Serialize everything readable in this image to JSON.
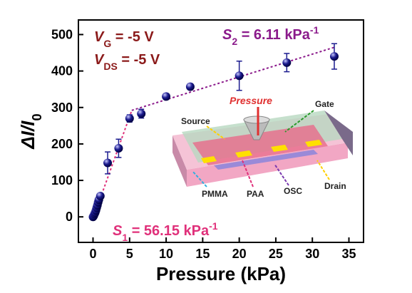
{
  "chart_data": {
    "type": "scatter",
    "x_label": "Pressure (kPa)",
    "y_label": [
      {
        "text": "ΔI/I",
        "style": "italic"
      },
      {
        "text": "0",
        "style": "sub"
      }
    ],
    "xlim": [
      -2,
      37
    ],
    "ylim": [
      -70,
      540
    ],
    "xticks": [
      0,
      5,
      10,
      15,
      20,
      25,
      30,
      35
    ],
    "yticks": [
      0,
      100,
      200,
      300,
      400,
      500
    ],
    "series": [
      {
        "color": "#1c1c8f",
        "x": [
          0,
          0.1,
          0.2,
          0.3,
          0.4,
          0.5,
          0.6,
          0.7,
          0.8,
          1,
          2,
          3.5,
          5,
          6.6,
          10,
          13.3,
          20,
          26.5,
          33
        ],
        "values": [
          0,
          3,
          8,
          12,
          18,
          25,
          32,
          40,
          47,
          57,
          148,
          188,
          270,
          283,
          330,
          357,
          387,
          423,
          440
        ],
        "errors": [
          2,
          2,
          2,
          2,
          3,
          3,
          3,
          3,
          3,
          5,
          30,
          25,
          10,
          12,
          8,
          8,
          40,
          25,
          35
        ]
      }
    ],
    "fits": [
      {
        "color": "#e0307a",
        "x": [
          0,
          5.3
        ],
        "values": [
          -5,
          292
        ]
      },
      {
        "color": "#8b1a8b",
        "x": [
          5.3,
          33
        ],
        "values": [
          292,
          465
        ]
      }
    ],
    "annotations": [
      {
        "color": "#8b1a1a",
        "parts": [
          {
            "text": "V",
            "style": "italic"
          },
          {
            "text": "G",
            "style": "sub"
          },
          {
            "text": " = -5 V"
          }
        ]
      },
      {
        "color": "#8b1a1a",
        "parts": [
          {
            "text": "V",
            "style": "italic"
          },
          {
            "text": "DS",
            "style": "sub"
          },
          {
            "text": " = -5 V"
          }
        ]
      },
      {
        "color": "#8b1a8b",
        "parts": [
          {
            "text": "S",
            "style": "italic"
          },
          {
            "text": "2",
            "style": "sub"
          },
          {
            "text": " = 6.11 kPa"
          },
          {
            "text": "-1",
            "style": "sup"
          }
        ]
      },
      {
        "color": "#e0307a",
        "parts": [
          {
            "text": "S",
            "style": "italic"
          },
          {
            "text": "1",
            "style": "sub"
          },
          {
            "text": " = 56.15 kPa"
          },
          {
            "text": "-1",
            "style": "sup"
          }
        ]
      }
    ],
    "inset": {
      "pressure": "Pressure",
      "gate": "Gate",
      "source": "Source",
      "pmma": "PMMA",
      "paa": "PAA",
      "osc": "OSC",
      "drain": "Drain"
    }
  }
}
